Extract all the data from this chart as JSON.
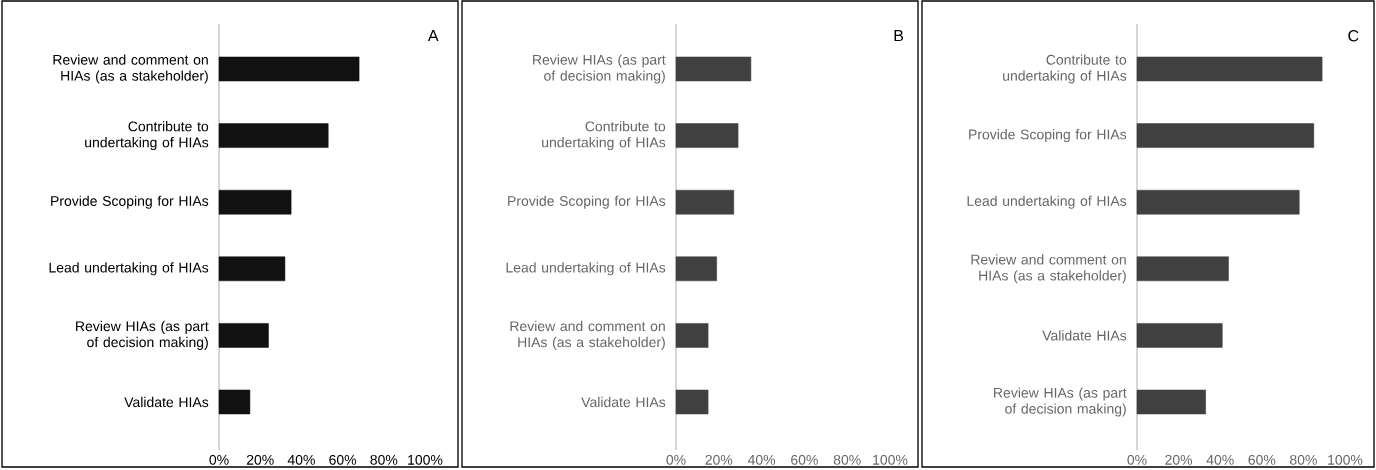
{
  "chart_data": [
    {
      "type": "bar",
      "orientation": "horizontal",
      "title": "A",
      "color": "#111111",
      "categories": [
        "Review and comment on HIAs (as a stakeholder)",
        "Contribute to undertaking of HIAs",
        "Provide Scoping for HIAs",
        "Lead undertaking of HIAs",
        "Review HIAs (as part of decision making)",
        "Validate HIAs"
      ],
      "values": [
        68,
        53,
        35,
        32,
        24,
        15
      ],
      "xlim": [
        0,
        100
      ],
      "xticks": [
        {
          "value": 0,
          "label": "0%"
        },
        {
          "value": 20,
          "label": "20%"
        },
        {
          "value": 40,
          "label": "40%"
        },
        {
          "value": 60,
          "label": "60%"
        },
        {
          "value": 80,
          "label": "80%"
        },
        {
          "value": 100,
          "label": "100%"
        }
      ]
    },
    {
      "type": "bar",
      "orientation": "horizontal",
      "title": "B",
      "color": "#404040",
      "categories": [
        "Review HIAs (as part of decision making)",
        "Contribute to undertaking of HIAs",
        "Provide Scoping for HIAs",
        "Lead undertaking of HIAs",
        "Review and comment on HIAs (as a stakeholder)",
        "Validate HIAs"
      ],
      "values": [
        35,
        29,
        27,
        19,
        15,
        15
      ],
      "xlim": [
        0,
        100
      ],
      "xticks": [
        {
          "value": 0,
          "label": "0%"
        },
        {
          "value": 20,
          "label": "20%"
        },
        {
          "value": 40,
          "label": "40%"
        },
        {
          "value": 60,
          "label": "60%"
        },
        {
          "value": 80,
          "label": "80%"
        },
        {
          "value": 100,
          "label": "100%"
        }
      ]
    },
    {
      "type": "bar",
      "orientation": "horizontal",
      "title": "C",
      "color": "#404040",
      "categories": [
        "Contribute to undertaking of HIAs",
        "Provide Scoping for HIAs",
        "Lead undertaking of HIAs",
        "Review and comment on HIAs (as a stakeholder)",
        "Validate HIAs",
        "Review HIAs (as part of decision making)"
      ],
      "values": [
        89,
        85,
        78,
        44,
        41,
        33
      ],
      "xlim": [
        0,
        100
      ],
      "xticks": [
        {
          "value": 0,
          "label": "0%"
        },
        {
          "value": 20,
          "label": "20%"
        },
        {
          "value": 40,
          "label": "40%"
        },
        {
          "value": 60,
          "label": "60%"
        },
        {
          "value": 80,
          "label": "80%"
        },
        {
          "value": 100,
          "label": "100%"
        }
      ]
    }
  ]
}
